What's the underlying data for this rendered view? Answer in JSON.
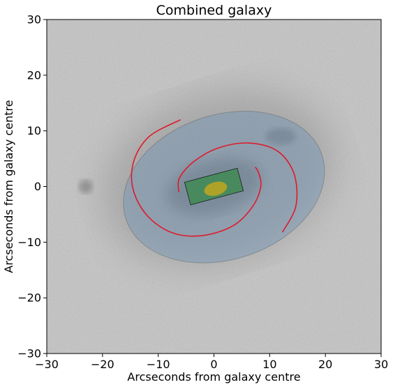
{
  "chart_data": {
    "type": "image_overlay",
    "title": "Combined galaxy",
    "xlabel": "Arcseconds from galaxy centre",
    "ylabel": "Arcseconds from galaxy centre",
    "xlim": [
      -30,
      30
    ],
    "ylim": [
      -30,
      30
    ],
    "xticks": [
      -30,
      -20,
      -10,
      0,
      10,
      20,
      30
    ],
    "yticks": [
      -30,
      -20,
      -10,
      0,
      10,
      20,
      30
    ],
    "grid": false,
    "background_colormap": "gray",
    "components": {
      "disk": {
        "shape": "ellipse",
        "center": [
          1.8,
          -0.1
        ],
        "semi_major": 18.5,
        "semi_minor": 13.0,
        "angle_deg": 18,
        "color": "#6d93b8",
        "opacity": 0.42
      },
      "bar": {
        "shape": "rectangle",
        "center": [
          0,
          0
        ],
        "half_length": 4.9,
        "half_width": 2.1,
        "angle_deg": 15,
        "color": "#1f8a2e",
        "opacity": 0.55
      },
      "bulge": {
        "shape": "ellipse",
        "center": [
          0.3,
          -0.4
        ],
        "semi_major": 2.1,
        "semi_minor": 1.2,
        "angle_deg": 15,
        "color": "#c8a81a",
        "opacity": 0.8
      },
      "spiral_arms": {
        "color": "#e0192b",
        "arms": [
          [
            [
              -6.0,
              12.0
            ],
            [
              -11.6,
              9.0
            ],
            [
              -14.4,
              4.5
            ],
            [
              -14.5,
              -0.5
            ],
            [
              -12.0,
              -5.2
            ],
            [
              -7.5,
              -8.3
            ],
            [
              -2.0,
              -8.8
            ],
            [
              3.5,
              -7.0
            ],
            [
              7.0,
              -3.5
            ],
            [
              8.4,
              0.0
            ],
            [
              8.0,
              2.5
            ],
            [
              7.4,
              3.5
            ]
          ],
          [
            [
              12.3,
              -8.2
            ],
            [
              14.7,
              -3.5
            ],
            [
              14.4,
              2.2
            ],
            [
              11.5,
              6.3
            ],
            [
              6.5,
              7.8
            ],
            [
              1.0,
              7.0
            ],
            [
              -3.6,
              4.5
            ],
            [
              -6.2,
              1.5
            ],
            [
              -6.3,
              -1.0
            ]
          ]
        ]
      }
    }
  }
}
